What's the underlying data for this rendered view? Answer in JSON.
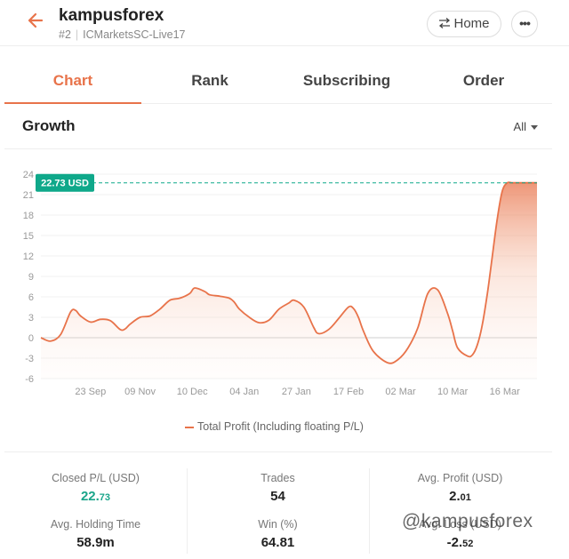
{
  "header": {
    "title": "kampusforex",
    "rank": "#2",
    "server": "ICMarketsSC-Live17",
    "home_label": "Home",
    "more_label": "•••",
    "peek_text": "  ·  ·   ·    ·  ·"
  },
  "tabs": [
    {
      "label": "Chart",
      "active": true
    },
    {
      "label": "Rank",
      "active": false
    },
    {
      "label": "Subscribing",
      "active": false
    },
    {
      "label": "Order",
      "active": false
    }
  ],
  "growth": {
    "title": "Growth",
    "range": "All"
  },
  "chart_data": {
    "type": "area",
    "current_label": "22.73 USD",
    "current_value": 22.73,
    "yticks": [
      24,
      21,
      18,
      15,
      12,
      9,
      6,
      3,
      0,
      -3,
      -6
    ],
    "ylim": [
      -6,
      24
    ],
    "xtick_labels": [
      "23 Sep",
      "09 Nov",
      "10 Dec",
      "04 Jan",
      "27 Jan",
      "17 Feb",
      "02 Mar",
      "10 Mar",
      "16 Mar"
    ],
    "xtick_pos": [
      0.1,
      0.2,
      0.305,
      0.41,
      0.515,
      0.62,
      0.725,
      0.83,
      0.935
    ],
    "series": [
      {
        "name": "Total Profit (Including floating P/L)",
        "color": "#e8734a",
        "x": [
          0,
          0.02,
          0.04,
          0.06,
          0.07,
          0.08,
          0.1,
          0.12,
          0.14,
          0.16,
          0.17,
          0.18,
          0.2,
          0.22,
          0.24,
          0.26,
          0.28,
          0.3,
          0.31,
          0.33,
          0.34,
          0.36,
          0.38,
          0.39,
          0.4,
          0.42,
          0.44,
          0.46,
          0.48,
          0.5,
          0.51,
          0.53,
          0.55,
          0.56,
          0.58,
          0.6,
          0.62,
          0.63,
          0.64,
          0.65,
          0.67,
          0.7,
          0.72,
          0.74,
          0.76,
          0.78,
          0.8,
          0.82,
          0.83,
          0.84,
          0.86,
          0.87,
          0.88,
          0.89,
          0.9,
          0.91,
          0.92,
          0.93,
          0.94,
          0.95,
          0.96,
          0.97,
          0.985,
          1.0
        ],
        "values": [
          0,
          -0.5,
          0.5,
          3.8,
          4.0,
          3.2,
          2.3,
          2.7,
          2.5,
          1.2,
          1.3,
          2.0,
          3.0,
          3.2,
          4.2,
          5.5,
          5.8,
          6.5,
          7.3,
          6.8,
          6.3,
          6.1,
          5.8,
          5.2,
          4.2,
          3.0,
          2.2,
          2.6,
          4.2,
          5.1,
          5.5,
          4.5,
          1.5,
          0.6,
          1.2,
          2.8,
          4.5,
          4.3,
          3.0,
          1.0,
          -2.0,
          -3.7,
          -3.2,
          -1.5,
          1.5,
          6.5,
          7.0,
          3.5,
          1.0,
          -1.5,
          -2.7,
          -2.5,
          -1.0,
          2.0,
          6.5,
          12.0,
          17.5,
          21.5,
          22.73,
          22.73,
          22.73,
          22.73,
          22.73,
          22.73
        ]
      }
    ]
  },
  "stats": [
    {
      "label": "Closed P/L (USD)",
      "int": "22.",
      "dec": "73",
      "green": true
    },
    {
      "label": "Trades",
      "int": "54",
      "dec": "",
      "green": false
    },
    {
      "label": "Avg. Profit (USD)",
      "int": "2.",
      "dec": "01",
      "green": false
    },
    {
      "label": "Avg. Holding Time",
      "int": "58.9m",
      "dec": "",
      "green": false
    },
    {
      "label": "Win (%)",
      "int": "64.81",
      "dec": "",
      "green": false
    },
    {
      "label": "Avg. Loss (USD)",
      "int": "-2.",
      "dec": "52",
      "green": false
    }
  ],
  "watermark": "@kampusforex",
  "colors": {
    "accent": "#e8734a",
    "profit_green": "#1aa58a",
    "badge_green": "#0fa88a"
  }
}
